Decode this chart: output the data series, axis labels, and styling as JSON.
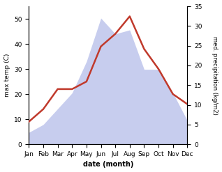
{
  "months": [
    "Jan",
    "Feb",
    "Mar",
    "Apr",
    "May",
    "Jun",
    "Jul",
    "Aug",
    "Sep",
    "Oct",
    "Nov",
    "Dec"
  ],
  "temp": [
    9,
    14,
    22,
    22,
    25,
    39,
    44,
    51,
    38,
    30,
    20,
    16
  ],
  "precip": [
    3,
    5,
    9,
    13,
    21,
    32,
    28,
    29,
    19,
    19,
    13,
    6
  ],
  "temp_color": "#c0392b",
  "precip_color": "#b0b8e8",
  "ylim_left": [
    0,
    55
  ],
  "ylim_right": [
    0,
    35
  ],
  "yticks_left": [
    0,
    10,
    20,
    30,
    40,
    50
  ],
  "yticks_right": [
    0,
    5,
    10,
    15,
    20,
    25,
    30,
    35
  ],
  "xlabel": "date (month)",
  "ylabel_left": "max temp (C)",
  "ylabel_right": "med. precipitation (kg/m2)",
  "bg_color": "#ffffff"
}
